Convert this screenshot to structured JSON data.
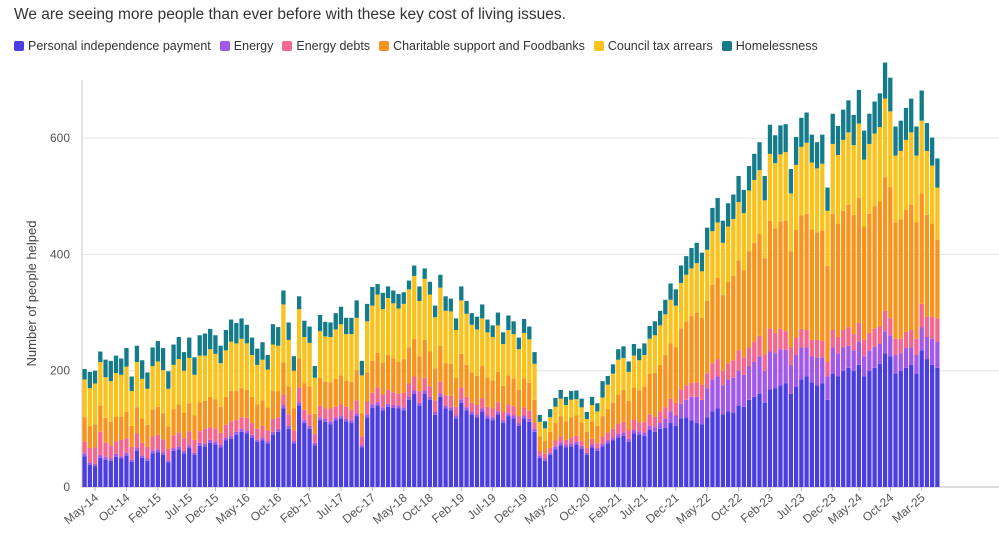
{
  "title": "We are seeing more people than ever before with these key cost of living issues.",
  "chart_data": {
    "type": "bar",
    "stacked": true,
    "title": "We are seeing more people than ever before with these key cost of living issues.",
    "ylabel": "Number of people helped",
    "xlabel": "",
    "ylim": [
      0,
      700
    ],
    "yticks": [
      0,
      200,
      400,
      600
    ],
    "grid": true,
    "legend_position": "top",
    "x_tick_labels": [
      "May-14",
      "Oct-14",
      "Feb-15",
      "Jul-15",
      "Dec-15",
      "May-16",
      "Oct-16",
      "Feb-17",
      "Jul-17",
      "Dec-17",
      "May-18",
      "Oct-18",
      "Feb-19",
      "Jul-19",
      "Dec-19",
      "May-20",
      "Oct-20",
      "Feb-21",
      "Jul-21",
      "Dec-21",
      "May-22",
      "Oct-22",
      "Feb-23",
      "Jul-23",
      "Dec-23",
      "May-24",
      "Oct-24",
      "Mar-25"
    ],
    "series": [
      {
        "name": "Personal independence payment",
        "color": "#4b3ee0",
        "values": [
          53,
          38,
          36,
          50,
          47,
          45,
          52,
          49,
          54,
          43,
          62,
          50,
          45,
          58,
          60,
          55,
          42,
          62,
          65,
          58,
          67,
          55,
          71,
          70,
          76,
          73,
          68,
          80,
          83,
          90,
          95,
          92,
          85,
          78,
          80,
          75,
          90,
          95,
          135,
          100,
          75,
          140,
          110,
          100,
          72,
          115,
          112,
          108,
          115,
          117,
          113,
          110,
          122,
          68,
          120,
          136,
          140,
          132,
          138,
          136,
          135,
          132,
          150,
          160,
          140,
          160,
          150,
          124,
          155,
          135,
          132,
          118,
          145,
          132,
          125,
          120,
          130,
          118,
          115,
          125,
          110,
          122,
          118,
          105,
          118,
          112,
          95,
          50,
          45,
          55,
          65,
          72,
          68,
          70,
          73,
          66,
          55,
          68,
          62,
          70,
          75,
          80,
          85,
          88,
          78,
          92,
          90,
          88,
          98,
          95,
          100,
          102,
          110,
          105,
          118,
          120,
          115,
          110,
          108,
          120,
          130,
          135,
          125,
          130,
          128,
          140,
          138,
          150,
          155,
          160,
          145,
          168,
          170,
          175,
          178,
          160,
          172,
          185,
          190,
          180,
          175,
          178,
          150,
          195,
          190,
          200,
          205,
          200,
          210,
          190,
          200,
          205,
          212,
          230,
          225,
          195,
          200,
          205,
          210,
          195,
          235,
          220,
          210,
          205
        ]
      },
      {
        "name": "Energy",
        "color": "#a259e8",
        "values": [
          5,
          4,
          4,
          5,
          5,
          4,
          5,
          4,
          5,
          4,
          5,
          4,
          4,
          5,
          5,
          5,
          4,
          5,
          5,
          4,
          5,
          4,
          5,
          5,
          5,
          5,
          5,
          5,
          5,
          5,
          5,
          5,
          5,
          4,
          5,
          4,
          5,
          5,
          6,
          5,
          4,
          6,
          5,
          5,
          4,
          5,
          5,
          5,
          5,
          5,
          5,
          5,
          5,
          4,
          5,
          6,
          6,
          5,
          5,
          5,
          5,
          5,
          6,
          6,
          5,
          6,
          5,
          5,
          6,
          5,
          5,
          5,
          6,
          5,
          5,
          5,
          5,
          5,
          5,
          5,
          5,
          5,
          5,
          5,
          5,
          5,
          5,
          4,
          4,
          4,
          5,
          5,
          5,
          5,
          5,
          5,
          4,
          5,
          5,
          5,
          5,
          5,
          6,
          6,
          5,
          6,
          6,
          6,
          7,
          8,
          10,
          15,
          20,
          18,
          25,
          30,
          40,
          45,
          42,
          50,
          55,
          55,
          50,
          55,
          60,
          60,
          55,
          58,
          60,
          65,
          55,
          65,
          60,
          62,
          58,
          50,
          55,
          55,
          50,
          45,
          48,
          45,
          40,
          45,
          40,
          40,
          38,
          35,
          40,
          35,
          35,
          36,
          34,
          38,
          36,
          32,
          30,
          34,
          30,
          32,
          40,
          38,
          45,
          45
        ]
      },
      {
        "name": "Energy debts",
        "color": "#f4678f",
        "values": [
          20,
          25,
          28,
          40,
          25,
          23,
          22,
          28,
          25,
          22,
          25,
          22,
          20,
          24,
          25,
          22,
          20,
          22,
          24,
          22,
          24,
          22,
          20,
          25,
          22,
          23,
          20,
          22,
          25,
          20,
          20,
          22,
          20,
          18,
          20,
          18,
          22,
          20,
          18,
          20,
          18,
          25,
          18,
          20,
          15,
          20,
          18,
          22,
          18,
          20,
          20,
          18,
          22,
          15,
          22,
          20,
          25,
          22,
          24,
          22,
          20,
          25,
          22,
          24,
          20,
          22,
          18,
          20,
          20,
          18,
          20,
          15,
          20,
          18,
          15,
          16,
          18,
          15,
          15,
          16,
          14,
          15,
          16,
          12,
          14,
          14,
          10,
          8,
          8,
          8,
          10,
          10,
          8,
          10,
          10,
          8,
          8,
          10,
          8,
          12,
          14,
          15,
          18,
          18,
          15,
          18,
          15,
          18,
          20,
          18,
          20,
          20,
          22,
          22,
          25,
          25,
          24,
          25,
          26,
          25,
          28,
          30,
          25,
          28,
          30,
          35,
          30,
          32,
          35,
          35,
          28,
          40,
          35,
          35,
          32,
          30,
          30,
          32,
          30,
          28,
          30,
          28,
          25,
          30,
          28,
          30,
          32,
          28,
          32,
          28,
          30,
          32,
          30,
          35,
          30,
          28,
          25,
          28,
          30,
          28,
          40,
          35,
          38,
          40
        ]
      },
      {
        "name": "Charitable support and Foodbanks",
        "color": "#f7941d",
        "values": [
          42,
          38,
          40,
          45,
          42,
          40,
          42,
          40,
          45,
          36,
          45,
          42,
          38,
          46,
          48,
          45,
          38,
          45,
          48,
          44,
          48,
          42,
          50,
          48,
          52,
          50,
          45,
          48,
          52,
          50,
          50,
          48,
          45,
          42,
          44,
          40,
          48,
          45,
          55,
          48,
          38,
          50,
          45,
          48,
          35,
          48,
          46,
          45,
          48,
          50,
          45,
          48,
          52,
          40,
          50,
          55,
          60,
          55,
          60,
          58,
          55,
          58,
          62,
          65,
          60,
          65,
          60,
          55,
          62,
          55,
          55,
          50,
          58,
          55,
          52,
          50,
          55,
          50,
          48,
          52,
          45,
          50,
          48,
          45,
          50,
          48,
          40,
          25,
          22,
          28,
          30,
          35,
          32,
          35,
          35,
          32,
          28,
          30,
          30,
          35,
          40,
          45,
          50,
          55,
          50,
          55,
          55,
          60,
          70,
          75,
          80,
          90,
          95,
          95,
          105,
          110,
          115,
          120,
          115,
          125,
          135,
          140,
          130,
          140,
          145,
          155,
          150,
          165,
          170,
          175,
          165,
          185,
          180,
          185,
          190,
          165,
          185,
          195,
          200,
          190,
          185,
          190,
          165,
          200,
          195,
          205,
          210,
          205,
          215,
          195,
          205,
          210,
          215,
          230,
          225,
          200,
          205,
          210,
          215,
          200,
          190,
          175,
          160,
          135
        ]
      },
      {
        "name": "Council tax arrears",
        "color": "#f9c21c",
        "values": [
          65,
          65,
          70,
          75,
          70,
          70,
          75,
          72,
          78,
          60,
          78,
          68,
          62,
          75,
          78,
          74,
          65,
          76,
          78,
          72,
          78,
          70,
          80,
          78,
          82,
          78,
          75,
          80,
          85,
          82,
          85,
          80,
          72,
          68,
          70,
          65,
          80,
          78,
          100,
          80,
          65,
          85,
          80,
          75,
          62,
          80,
          78,
          78,
          85,
          88,
          80,
          82,
          90,
          65,
          88,
          95,
          100,
          92,
          98,
          95,
          92,
          95,
          100,
          108,
          95,
          105,
          98,
          88,
          100,
          90,
          90,
          82,
          92,
          88,
          82,
          80,
          82,
          78,
          75,
          80,
          72,
          78,
          76,
          70,
          78,
          75,
          62,
          25,
          22,
          25,
          28,
          30,
          28,
          30,
          28,
          26,
          22,
          28,
          25,
          32,
          42,
          50,
          60,
          55,
          50,
          55,
          52,
          55,
          60,
          65,
          68,
          70,
          75,
          72,
          78,
          80,
          82,
          85,
          80,
          88,
          92,
          95,
          90,
          95,
          98,
          100,
          98,
          105,
          108,
          110,
          100,
          115,
          112,
          115,
          118,
          100,
          112,
          118,
          122,
          115,
          110,
          115,
          95,
          120,
          118,
          122,
          125,
          120,
          128,
          115,
          120,
          125,
          128,
          135,
          130,
          115,
          118,
          120,
          125,
          115,
          125,
          110,
          100,
          90
        ]
      },
      {
        "name": "Homelessness",
        "color": "#137b8a",
        "values": [
          18,
          28,
          22,
          18,
          30,
          35,
          30,
          28,
          32,
          25,
          28,
          32,
          28,
          32,
          35,
          38,
          30,
          35,
          38,
          32,
          35,
          30,
          35,
          38,
          35,
          32,
          30,
          35,
          38,
          35,
          35,
          32,
          30,
          28,
          30,
          25,
          35,
          32,
          24,
          30,
          25,
          22,
          28,
          28,
          20,
          28,
          25,
          25,
          28,
          30,
          28,
          28,
          30,
          25,
          30,
          32,
          18,
          28,
          20,
          22,
          25,
          20,
          15,
          18,
          25,
          18,
          22,
          20,
          22,
          25,
          22,
          20,
          24,
          22,
          20,
          22,
          24,
          22,
          20,
          22,
          20,
          25,
          22,
          20,
          24,
          22,
          20,
          12,
          12,
          14,
          15,
          15,
          14,
          15,
          15,
          15,
          12,
          14,
          14,
          28,
          15,
          16,
          18,
          20,
          18,
          20,
          20,
          20,
          22,
          24,
          25,
          25,
          28,
          28,
          30,
          32,
          35,
          35,
          32,
          38,
          40,
          42,
          38,
          40,
          42,
          45,
          40,
          42,
          45,
          48,
          42,
          50,
          48,
          50,
          48,
          42,
          48,
          50,
          52,
          48,
          45,
          50,
          40,
          52,
          50,
          52,
          55,
          52,
          58,
          50,
          52,
          55,
          58,
          62,
          58,
          50,
          52,
          55,
          58,
          50,
          52,
          48,
          48,
          50
        ]
      }
    ]
  }
}
